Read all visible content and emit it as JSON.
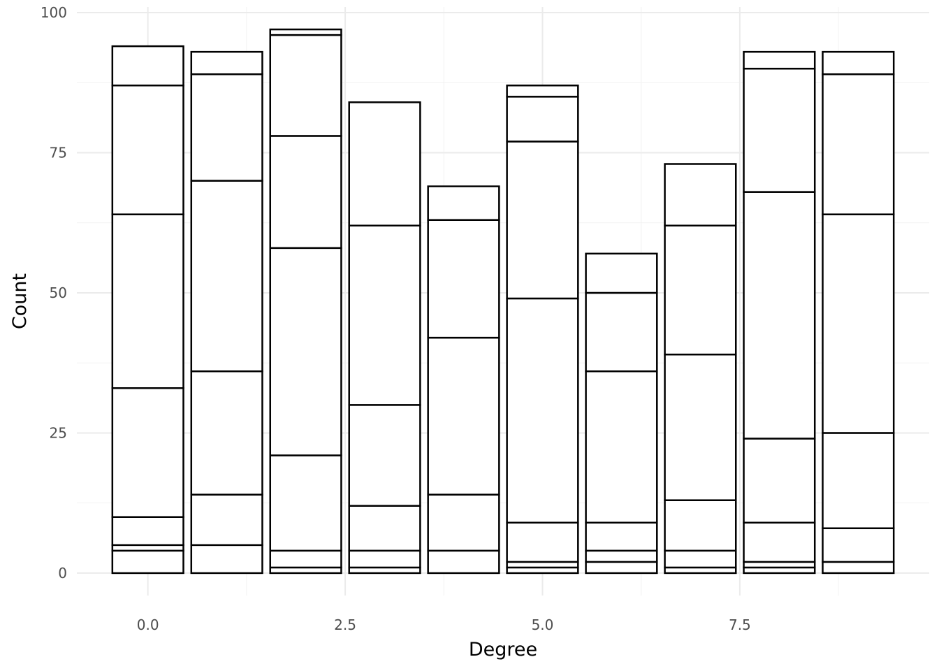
{
  "chart_data": {
    "type": "bar",
    "stacked": true,
    "xlabel": "Degree",
    "ylabel": "Count",
    "xlim": [
      -0.9,
      9.9
    ],
    "ylim": [
      -4,
      101
    ],
    "x_ticks": [
      0,
      2.5,
      5,
      7.5
    ],
    "x_tick_labels": [
      "0.0",
      "2.5",
      "5.0",
      "7.5"
    ],
    "y_ticks": [
      0,
      25,
      50,
      75,
      100
    ],
    "y_tick_labels": [
      "0",
      "25",
      "50",
      "75",
      "100"
    ],
    "grid": true,
    "bar_fill": "#ffffff",
    "bar_stroke": "#000000",
    "bars": [
      {
        "x": 0,
        "cumulative": [
          4,
          5,
          10,
          33,
          64,
          87,
          94
        ]
      },
      {
        "x": 1,
        "cumulative": [
          5,
          14,
          36,
          70,
          89,
          93
        ]
      },
      {
        "x": 2,
        "cumulative": [
          1,
          4,
          21,
          58,
          78,
          96,
          97
        ]
      },
      {
        "x": 3,
        "cumulative": [
          1,
          4,
          12,
          30,
          62,
          84
        ]
      },
      {
        "x": 4,
        "cumulative": [
          4,
          14,
          42,
          63,
          69
        ]
      },
      {
        "x": 5,
        "cumulative": [
          1,
          2,
          9,
          49,
          77,
          85,
          87
        ]
      },
      {
        "x": 6,
        "cumulative": [
          2,
          4,
          9,
          36,
          50,
          57
        ]
      },
      {
        "x": 7,
        "cumulative": [
          1,
          4,
          13,
          39,
          62,
          73
        ]
      },
      {
        "x": 8,
        "cumulative": [
          1,
          2,
          9,
          24,
          68,
          90,
          93
        ]
      },
      {
        "x": 9,
        "cumulative": [
          2,
          8,
          25,
          64,
          89,
          93
        ]
      }
    ]
  }
}
